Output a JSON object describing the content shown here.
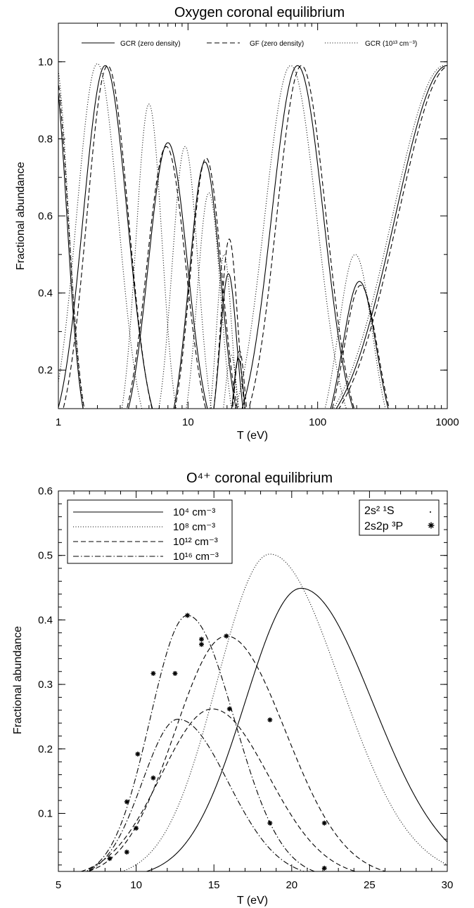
{
  "chart_data": [
    {
      "type": "line",
      "title": "Oxygen coronal equilibrium",
      "xlabel": "T (eV)",
      "ylabel": "Fractional abundance",
      "xscale": "log",
      "xlim": [
        1,
        1000
      ],
      "ylim": [
        0.1,
        1.1
      ],
      "xticks": [
        "1",
        "10",
        "100",
        "1000"
      ],
      "yticks": [
        "0.2",
        "0.4",
        "0.6",
        "0.8",
        "1.0"
      ],
      "legend": {
        "placement": "top",
        "entries": [
          {
            "name": "GCR (zero density)",
            "style": "solid"
          },
          {
            "name": "GF (zero density)",
            "style": "dashed"
          },
          {
            "name": "GCR (10¹³ cm⁻³)",
            "style": "dotted"
          }
        ]
      },
      "series": [
        {
          "style": "solid",
          "peaks": [
            {
              "peak_T": 0.9,
              "height": 1.0,
              "width": 0.11
            },
            {
              "peak_T": 2.3,
              "height": 0.99,
              "width": 0.17
            },
            {
              "peak_T": 7.0,
              "height": 0.79,
              "width": 0.15
            },
            {
              "peak_T": 13.5,
              "height": 0.74,
              "width": 0.12
            },
            {
              "peak_T": 20.5,
              "height": 0.45,
              "width": 0.065
            },
            {
              "peak_T": 24.5,
              "height": 0.23,
              "width": 0.04
            },
            {
              "peak_T": 70,
              "height": 0.99,
              "width": 0.2
            },
            {
              "peak_T": 210,
              "height": 0.43,
              "width": 0.13
            },
            {
              "peak_T": 1000,
              "height": 0.99,
              "width": 0.4
            }
          ]
        },
        {
          "style": "dashed",
          "peaks": [
            {
              "peak_T": 0.92,
              "height": 1.0,
              "width": 0.11
            },
            {
              "peak_T": 2.4,
              "height": 0.99,
              "width": 0.16
            },
            {
              "peak_T": 6.8,
              "height": 0.78,
              "width": 0.15
            },
            {
              "peak_T": 13.8,
              "height": 0.75,
              "width": 0.12
            },
            {
              "peak_T": 20.8,
              "height": 0.54,
              "width": 0.065
            },
            {
              "peak_T": 25,
              "height": 0.25,
              "width": 0.04
            },
            {
              "peak_T": 75,
              "height": 0.99,
              "width": 0.19
            },
            {
              "peak_T": 215,
              "height": 0.42,
              "width": 0.13
            },
            {
              "peak_T": 1050,
              "height": 0.99,
              "width": 0.4
            }
          ]
        },
        {
          "style": "dotted",
          "peaks": [
            {
              "peak_T": 0.95,
              "height": 1.0,
              "width": 0.1
            },
            {
              "peak_T": 2.0,
              "height": 0.995,
              "width": 0.16
            },
            {
              "peak_T": 5.0,
              "height": 0.89,
              "width": 0.1
            },
            {
              "peak_T": 9.5,
              "height": 0.78,
              "width": 0.1
            },
            {
              "peak_T": 14.5,
              "height": 0.66,
              "width": 0.09
            },
            {
              "peak_T": 19,
              "height": 0.5,
              "width": 0.06
            },
            {
              "peak_T": 21.5,
              "height": 0.24,
              "width": 0.045
            },
            {
              "peak_T": 62,
              "height": 0.99,
              "width": 0.2
            },
            {
              "peak_T": 195,
              "height": 0.5,
              "width": 0.13
            },
            {
              "peak_T": 950,
              "height": 0.99,
              "width": 0.4
            }
          ]
        }
      ]
    },
    {
      "type": "line",
      "title": "O⁴⁺ coronal equilibrium",
      "xlabel": "T (eV)",
      "ylabel": "Fractional abundance",
      "xlim": [
        5,
        30
      ],
      "ylim": [
        0.01,
        0.6
      ],
      "xticks": [
        "5",
        "10",
        "15",
        "20",
        "25",
        "30"
      ],
      "yticks": [
        "0.1",
        "0.2",
        "0.3",
        "0.4",
        "0.5",
        "0.6"
      ],
      "legend": {
        "placement": "top-left",
        "entries": [
          {
            "name": "10⁴ cm⁻³",
            "style": "solid"
          },
          {
            "name": "10⁸ cm⁻³",
            "style": "dotted"
          },
          {
            "name": "10¹² cm⁻³",
            "style": "dashed"
          },
          {
            "name": "10¹⁶ cm⁻³",
            "style": "dash-dot"
          }
        ]
      },
      "marker_legend": {
        "placement": "top-right",
        "entries": [
          {
            "name": "2s² ¹S",
            "marker": "dot"
          },
          {
            "name": "2s2p ³P",
            "marker": "asterisk"
          }
        ]
      },
      "series": [
        {
          "name": "10⁴ cm⁻³",
          "style": "solid",
          "peak_T": 20.6,
          "peak": 0.449,
          "sigma_lo": 3.6,
          "sigma_hi": 4.6
        },
        {
          "name": "10⁸ cm⁻³",
          "style": "dotted",
          "peak_T": 18.6,
          "peak": 0.502,
          "sigma_lo": 3.4,
          "sigma_hi": 4.5
        },
        {
          "name": "10¹² cm⁻³",
          "style": "dashed",
          "peak_T": 15.8,
          "peak": 0.375,
          "sigma_lo": 3.3,
          "sigma_hi": 3.8
        },
        {
          "name": "10¹² cm⁻³",
          "style": "dashed",
          "peak_T": 14.9,
          "peak": 0.262,
          "sigma_lo": 3.3,
          "sigma_hi": 3.6
        },
        {
          "name": "10¹⁶ cm⁻³",
          "style": "dash-dot",
          "peak_T": 13.3,
          "peak": 0.407,
          "sigma_lo": 2.4,
          "sigma_hi": 3.0
        },
        {
          "name": "10¹⁶ cm⁻³",
          "style": "dash-dot",
          "peak_T": 12.7,
          "peak": 0.246,
          "sigma_lo": 2.3,
          "sigma_hi": 3.2
        }
      ],
      "markers": [
        {
          "x": 8.3,
          "y": 0.03
        },
        {
          "x": 9.4,
          "y": 0.118
        },
        {
          "x": 10.1,
          "y": 0.192
        },
        {
          "x": 11.1,
          "y": 0.317
        },
        {
          "x": 13.3,
          "y": 0.407
        },
        {
          "x": 14.2,
          "y": 0.37
        },
        {
          "x": 14.2,
          "y": 0.362
        },
        {
          "x": 12.5,
          "y": 0.317
        },
        {
          "x": 11.1,
          "y": 0.155
        },
        {
          "x": 10.0,
          "y": 0.077
        },
        {
          "x": 9.4,
          "y": 0.04
        },
        {
          "x": 15.8,
          "y": 0.375
        },
        {
          "x": 16.0,
          "y": 0.262
        },
        {
          "x": 18.6,
          "y": 0.245
        },
        {
          "x": 18.6,
          "y": 0.085
        },
        {
          "x": 22.1,
          "y": 0.085
        },
        {
          "x": 22.1,
          "y": 0.015
        }
      ]
    }
  ]
}
